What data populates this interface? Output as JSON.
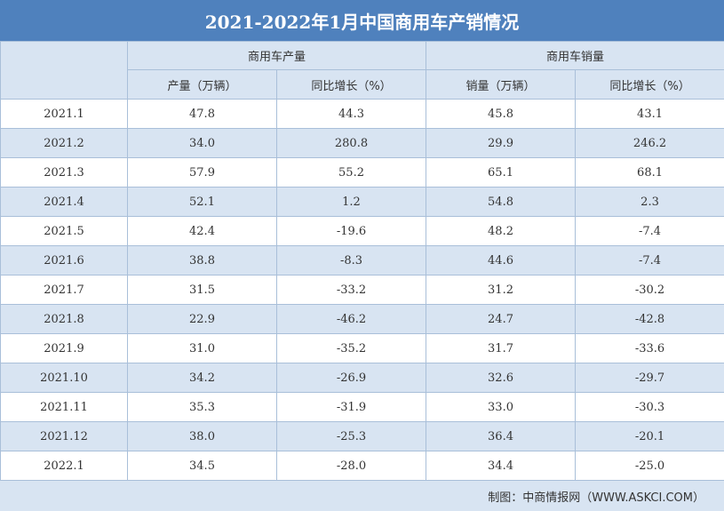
{
  "title": "2021-2022年1月中国商用车产销情况",
  "headers": {
    "production_group": "商用车产量",
    "sales_group": "商用车销量",
    "production_volume": "产量（万辆）",
    "production_yoy": "同比增长（%）",
    "sales_volume": "销量（万辆）",
    "sales_yoy": "同比增长（%）"
  },
  "rows": [
    {
      "month": "2021.1",
      "prod": "47.8",
      "prod_yoy": "44.3",
      "sales": "45.8",
      "sales_yoy": "43.1"
    },
    {
      "month": "2021.2",
      "prod": "34.0",
      "prod_yoy": "280.8",
      "sales": "29.9",
      "sales_yoy": "246.2"
    },
    {
      "month": "2021.3",
      "prod": "57.9",
      "prod_yoy": "55.2",
      "sales": "65.1",
      "sales_yoy": "68.1"
    },
    {
      "month": "2021.4",
      "prod": "52.1",
      "prod_yoy": "1.2",
      "sales": "54.8",
      "sales_yoy": "2.3"
    },
    {
      "month": "2021.5",
      "prod": "42.4",
      "prod_yoy": "-19.6",
      "sales": "48.2",
      "sales_yoy": "-7.4"
    },
    {
      "month": "2021.6",
      "prod": "38.8",
      "prod_yoy": "-8.3",
      "sales": "44.6",
      "sales_yoy": "-7.4"
    },
    {
      "month": "2021.7",
      "prod": "31.5",
      "prod_yoy": "-33.2",
      "sales": "31.2",
      "sales_yoy": "-30.2"
    },
    {
      "month": "2021.8",
      "prod": "22.9",
      "prod_yoy": "-46.2",
      "sales": "24.7",
      "sales_yoy": "-42.8"
    },
    {
      "month": "2021.9",
      "prod": "31.0",
      "prod_yoy": "-35.2",
      "sales": "31.7",
      "sales_yoy": "-33.6"
    },
    {
      "month": "2021.10",
      "prod": "34.2",
      "prod_yoy": "-26.9",
      "sales": "32.6",
      "sales_yoy": "-29.7"
    },
    {
      "month": "2021.11",
      "prod": "35.3",
      "prod_yoy": "-31.9",
      "sales": "33.0",
      "sales_yoy": "-30.3"
    },
    {
      "month": "2021.12",
      "prod": "38.0",
      "prod_yoy": "-25.3",
      "sales": "36.4",
      "sales_yoy": "-20.1"
    },
    {
      "month": "2022.1",
      "prod": "34.5",
      "prod_yoy": "-28.0",
      "sales": "34.4",
      "sales_yoy": "-25.0"
    }
  ],
  "footer": "制图：中商情报网（WWW.ASKCI.COM）",
  "colors": {
    "title_bg": "#4f81bd",
    "band": "#d8e4f2",
    "border": "#a9bfd9"
  }
}
